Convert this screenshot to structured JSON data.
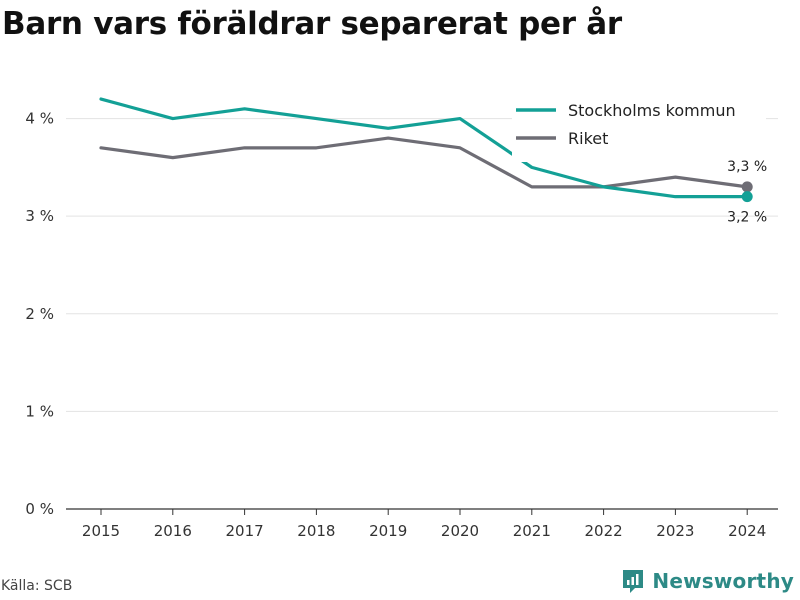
{
  "title": "Barn vars föräldrar separerat per år",
  "source": "Källa: SCB",
  "brand": {
    "name": "Newsworthy",
    "icon": "newsworthy-logo-icon"
  },
  "colors": {
    "stockholm": "#13a096",
    "riket": "#6e6d75",
    "grid": "#e3e3e3"
  },
  "chart_data": {
    "type": "line",
    "x": [
      "2015",
      "2016",
      "2017",
      "2018",
      "2019",
      "2020",
      "2021",
      "2022",
      "2023",
      "2024"
    ],
    "series": [
      {
        "name": "Stockholms kommun",
        "values": [
          4.2,
          4.0,
          4.1,
          4.0,
          3.9,
          4.0,
          3.5,
          3.3,
          3.2,
          3.2
        ],
        "end_label": "3,2 %"
      },
      {
        "name": "Riket",
        "values": [
          3.7,
          3.6,
          3.7,
          3.7,
          3.8,
          3.7,
          3.3,
          3.3,
          3.4,
          3.3
        ],
        "end_label": "3,3 %"
      }
    ],
    "yticks": [
      "0 %",
      "1 %",
      "2 %",
      "3 %",
      "4 %"
    ],
    "ylim": [
      0,
      4.6
    ],
    "grid": true,
    "legend_position": "top-right"
  }
}
